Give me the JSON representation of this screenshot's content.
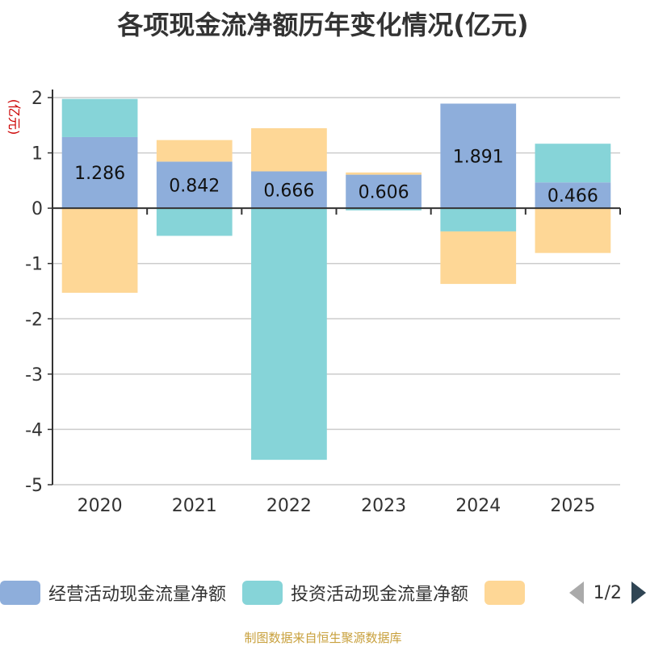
{
  "chart_data": {
    "type": "bar",
    "stacked": true,
    "title": "各项现金流净额历年变化情况(亿元)",
    "ylabel": "(亿元)",
    "xlabel": "",
    "ylim": [
      -5,
      2
    ],
    "yticks": [
      -5,
      -4,
      -3,
      -2,
      -1,
      0,
      1,
      2
    ],
    "categories": [
      "2020",
      "2021",
      "2022",
      "2023",
      "2024",
      "2025"
    ],
    "series": [
      {
        "name": "经营活动现金流量净额",
        "color": "#8eaedb",
        "values": [
          1.286,
          0.842,
          0.666,
          0.606,
          1.891,
          0.466
        ],
        "labels": [
          "1.286",
          "0.842",
          "0.666",
          "0.606",
          "1.891",
          "0.466"
        ]
      },
      {
        "name": "投资活动现金流量净额",
        "color": "#86d4d8",
        "values": [
          0.69,
          -0.5,
          -4.55,
          -0.04,
          -0.42,
          0.7
        ]
      },
      {
        "name": "",
        "color": "#fed796",
        "values": [
          -1.53,
          0.39,
          0.78,
          0.04,
          -0.95,
          -0.81
        ]
      }
    ],
    "legend_position": "bottom",
    "legend_pager": "1/2"
  },
  "source": "制图数据来自恒生聚源数据库"
}
